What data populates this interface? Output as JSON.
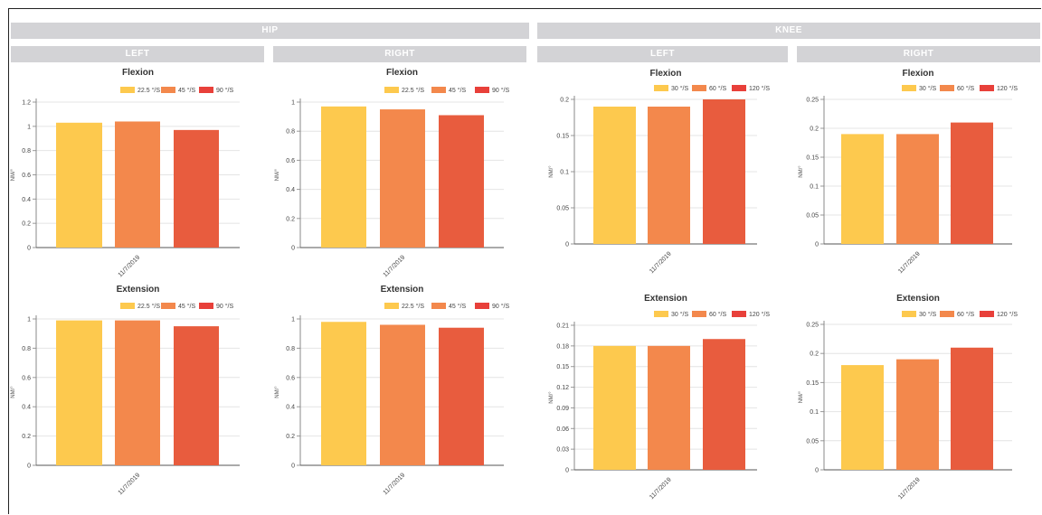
{
  "headers": {
    "hip": "HIP",
    "knee": "KNEE",
    "left": "LEFT",
    "right": "RIGHT"
  },
  "colors": [
    "#fdc94e",
    "#f3884c",
    "#e85c3e"
  ],
  "legend_colors": [
    "#fdc94e",
    "#f3884c",
    "#e8403a"
  ],
  "chart_data": [
    {
      "id": "hip-left-flexion",
      "type": "bar",
      "title": "Flexion",
      "xlabel": "",
      "ylabel": "NM/°",
      "categories": [
        "11/7/2019"
      ],
      "ylim": [
        0,
        1.2
      ],
      "yticks": [
        "0",
        "0.2",
        "0.4",
        "0.6",
        "0.8",
        "1",
        "1.2"
      ],
      "legend_placement": "top-right",
      "series": [
        {
          "name": "22.5 °/S",
          "values": [
            1.03
          ]
        },
        {
          "name": "45 °/S",
          "values": [
            1.04
          ]
        },
        {
          "name": "90 °/S",
          "values": [
            0.97
          ]
        }
      ]
    },
    {
      "id": "hip-right-flexion",
      "type": "bar",
      "title": "Flexion",
      "xlabel": "",
      "ylabel": "NM/°",
      "categories": [
        "11/7/2019"
      ],
      "ylim": [
        0,
        1
      ],
      "yticks": [
        "0",
        "0.2",
        "0.4",
        "0.6",
        "0.8",
        "1"
      ],
      "legend_placement": "top-right",
      "series": [
        {
          "name": "22.5 °/S",
          "values": [
            0.97
          ]
        },
        {
          "name": "45 °/S",
          "values": [
            0.95
          ]
        },
        {
          "name": "90 °/S",
          "values": [
            0.91
          ]
        }
      ]
    },
    {
      "id": "knee-left-flexion",
      "type": "bar",
      "title": "Flexion",
      "xlabel": "",
      "ylabel": "NM/°",
      "categories": [
        "11/7/2019"
      ],
      "ylim": [
        0,
        0.2
      ],
      "yticks": [
        "0",
        "0.05",
        "0.1",
        "0.15",
        "0.2"
      ],
      "legend_placement": "top-right",
      "series": [
        {
          "name": "30 °/S",
          "values": [
            0.19
          ]
        },
        {
          "name": "60 °/S",
          "values": [
            0.19
          ]
        },
        {
          "name": "120 °/S",
          "values": [
            0.2
          ]
        }
      ]
    },
    {
      "id": "knee-right-flexion",
      "type": "bar",
      "title": "Flexion",
      "xlabel": "",
      "ylabel": "NM/°",
      "categories": [
        "11/7/2019"
      ],
      "ylim": [
        0,
        0.25
      ],
      "yticks": [
        "0",
        "0.05",
        "0.1",
        "0.15",
        "0.2",
        "0.25"
      ],
      "legend_placement": "top-right",
      "series": [
        {
          "name": "30 °/S",
          "values": [
            0.19
          ]
        },
        {
          "name": "60 °/S",
          "values": [
            0.19
          ]
        },
        {
          "name": "120 °/S",
          "values": [
            0.21
          ]
        }
      ]
    },
    {
      "id": "hip-left-extension",
      "type": "bar",
      "title": "Extension",
      "xlabel": "",
      "ylabel": "NM/°",
      "categories": [
        "11/7/2019"
      ],
      "ylim": [
        0,
        1
      ],
      "yticks": [
        "0",
        "0.2",
        "0.4",
        "0.6",
        "0.8",
        "1"
      ],
      "legend_placement": "top-right",
      "series": [
        {
          "name": "22.5 °/S",
          "values": [
            0.99
          ]
        },
        {
          "name": "45 °/S",
          "values": [
            0.99
          ]
        },
        {
          "name": "90 °/S",
          "values": [
            0.95
          ]
        }
      ]
    },
    {
      "id": "hip-right-extension",
      "type": "bar",
      "title": "Extension",
      "xlabel": "",
      "ylabel": "NM/°",
      "categories": [
        "11/7/2019"
      ],
      "ylim": [
        0,
        1
      ],
      "yticks": [
        "0",
        "0.2",
        "0.4",
        "0.6",
        "0.8",
        "1"
      ],
      "legend_placement": "top-right",
      "series": [
        {
          "name": "22.5 °/S",
          "values": [
            0.98
          ]
        },
        {
          "name": "45 °/S",
          "values": [
            0.96
          ]
        },
        {
          "name": "90 °/S",
          "values": [
            0.94
          ]
        }
      ]
    },
    {
      "id": "knee-left-extension",
      "type": "bar",
      "title": "Extension",
      "xlabel": "",
      "ylabel": "NM/°",
      "categories": [
        "11/7/2019"
      ],
      "ylim": [
        0,
        0.21
      ],
      "yticks": [
        "0",
        "0.03",
        "0.06",
        "0.09",
        "0.12",
        "0.15",
        "0.18",
        "0.21"
      ],
      "legend_placement": "top-right",
      "series": [
        {
          "name": "30 °/S",
          "values": [
            0.18
          ]
        },
        {
          "name": "60 °/S",
          "values": [
            0.18
          ]
        },
        {
          "name": "120 °/S",
          "values": [
            0.19
          ]
        }
      ]
    },
    {
      "id": "knee-right-extension",
      "type": "bar",
      "title": "Extension",
      "xlabel": "",
      "ylabel": "NM/°",
      "categories": [
        "11/7/2019"
      ],
      "ylim": [
        0,
        0.25
      ],
      "yticks": [
        "0",
        "0.05",
        "0.1",
        "0.15",
        "0.2",
        "0.25"
      ],
      "legend_placement": "top-right",
      "series": [
        {
          "name": "30 °/S",
          "values": [
            0.18
          ]
        },
        {
          "name": "60 °/S",
          "values": [
            0.19
          ]
        },
        {
          "name": "120 °/S",
          "values": [
            0.21
          ]
        }
      ]
    }
  ]
}
